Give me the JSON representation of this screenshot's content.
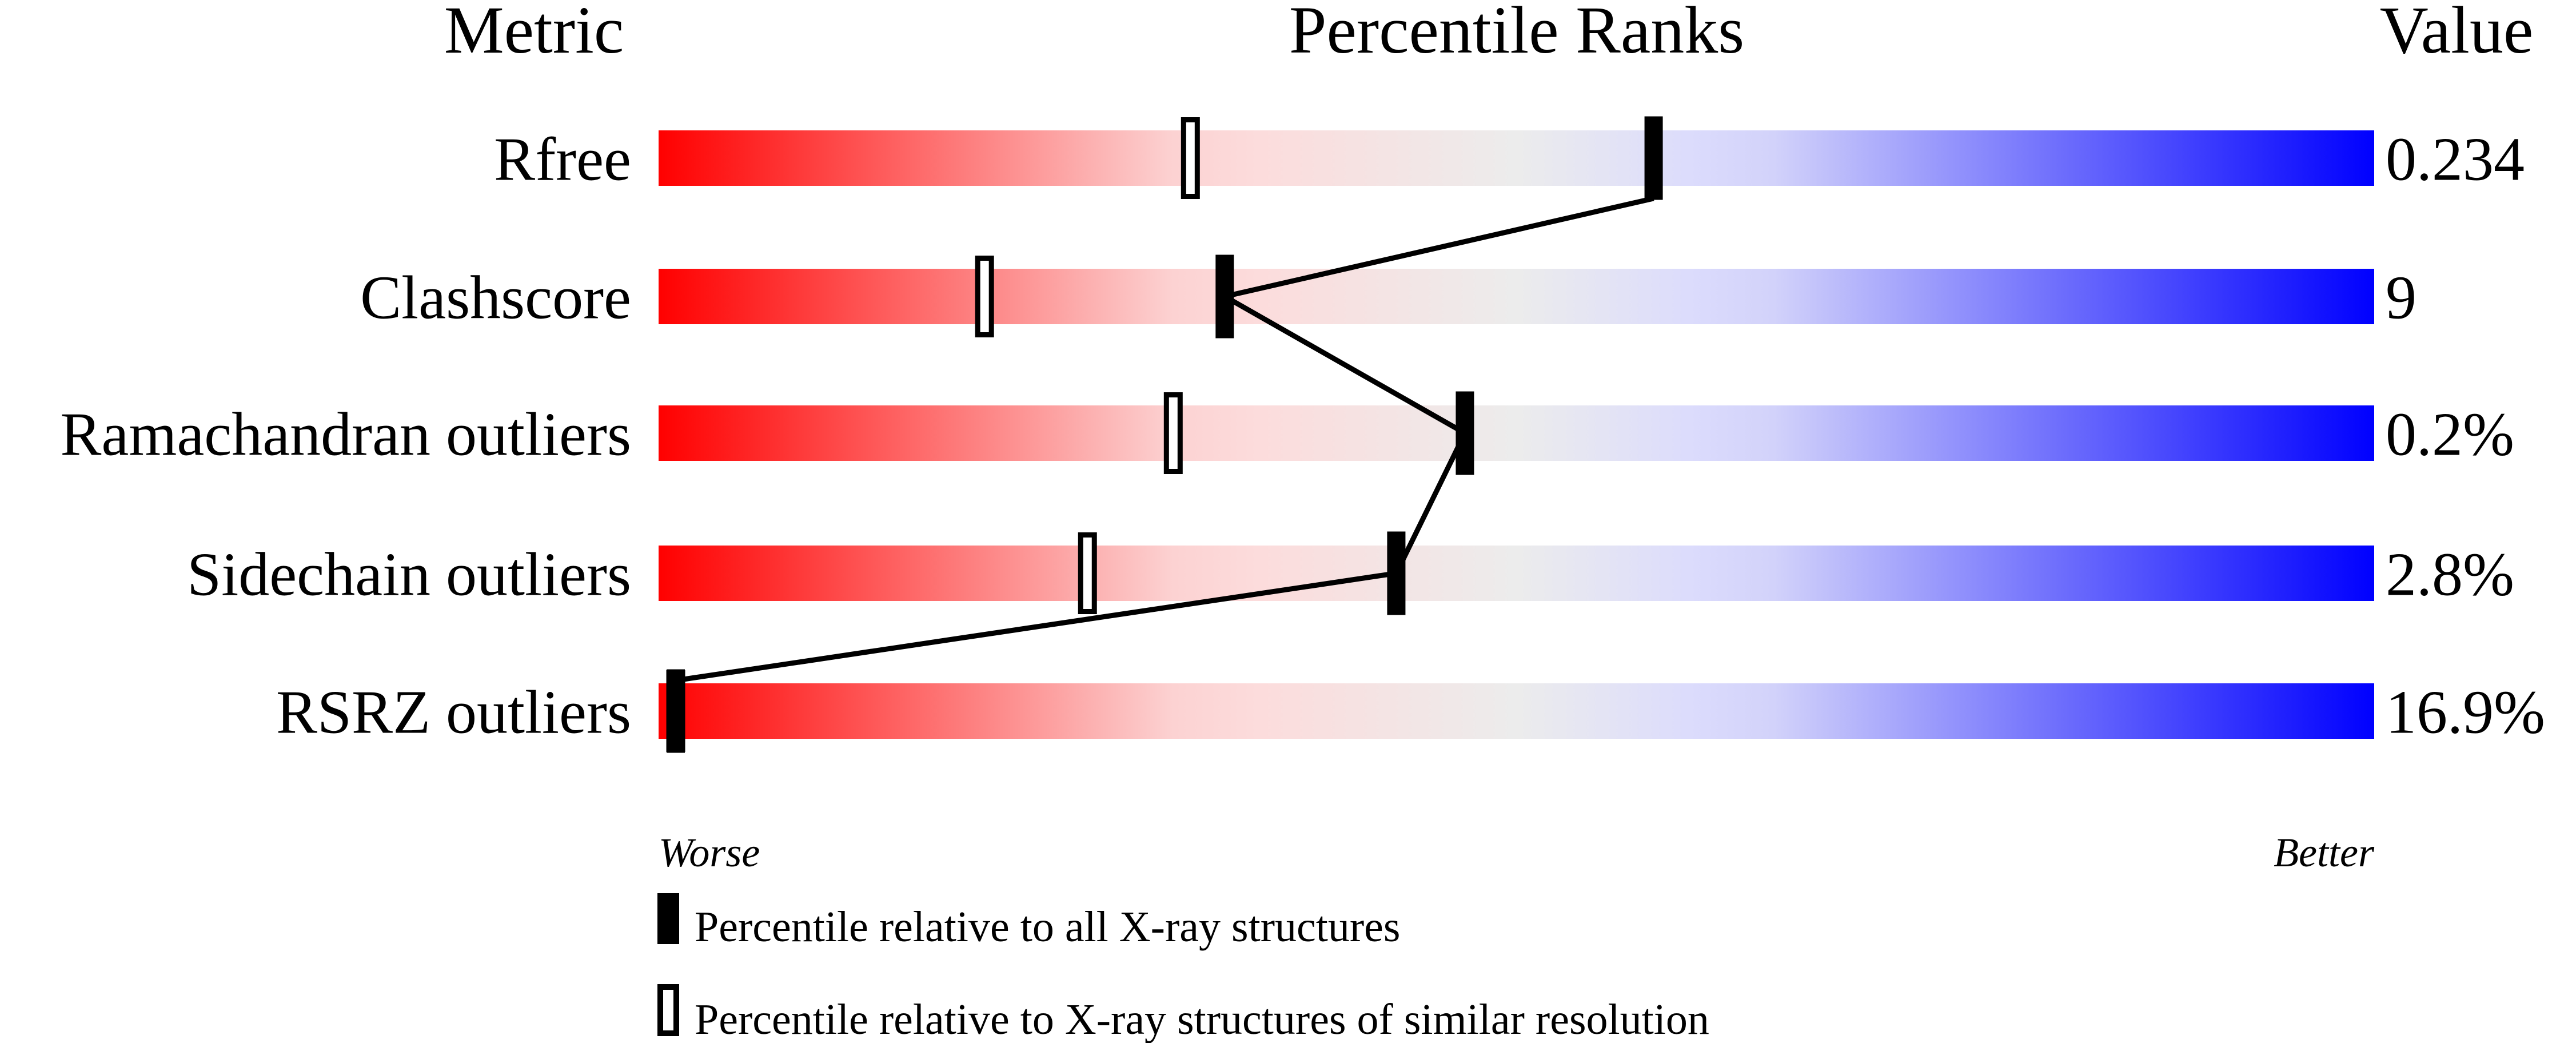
{
  "chart_data": {
    "type": "percentile-slider",
    "headers": {
      "metric": "Metric",
      "ranks": "Percentile Ranks",
      "value": "Value"
    },
    "xlim": [
      0,
      100
    ],
    "gradient_colors": [
      "#ff0000",
      "#fcdcdc",
      "#ececec",
      "#dcdcfc",
      "#0000ff"
    ],
    "metrics": [
      {
        "name": "Rfree",
        "value": "0.234",
        "percentile_all": 58,
        "percentile_similar": 31
      },
      {
        "name": "Clashscore",
        "value": "9",
        "percentile_all": 33,
        "percentile_similar": 19
      },
      {
        "name": "Ramachandran outliers",
        "value": "0.2%",
        "percentile_all": 47,
        "percentile_similar": 30
      },
      {
        "name": "Sidechain outliers",
        "value": "2.8%",
        "percentile_all": 43,
        "percentile_similar": 25
      },
      {
        "name": "RSRZ outliers",
        "value": "16.9%",
        "percentile_all": 1,
        "percentile_similar": 1
      }
    ],
    "axis_labels": {
      "left": "Worse",
      "right": "Better"
    },
    "legend": {
      "all": "Percentile relative to all X-ray structures",
      "similar": "Percentile relative to X-ray structures of similar resolution"
    }
  }
}
